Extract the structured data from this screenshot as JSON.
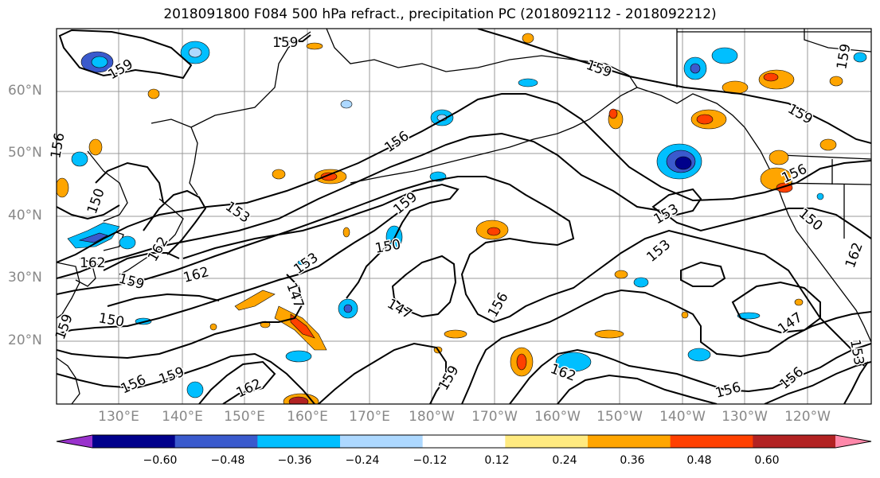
{
  "title": "2018091800 F084 500 hPa refract., precipitation PC (2018092112 - 2018092212)",
  "lat_labels": [
    "60°N",
    "50°N",
    "40°N",
    "30°N",
    "20°N"
  ],
  "lon_labels": [
    "130°E",
    "140°E",
    "150°E",
    "160°E",
    "170°E",
    "180°W",
    "170°W",
    "160°W",
    "150°W",
    "140°W",
    "130°W",
    "120°W"
  ],
  "contour_labels": [
    "159",
    "159",
    "159",
    "159",
    "159",
    "156",
    "153",
    "150",
    "162",
    "162",
    "159",
    "162",
    "153",
    "150",
    "147",
    "150",
    "147",
    "156",
    "159",
    "162",
    "159",
    "156",
    "162",
    "159",
    "153",
    "153",
    "150",
    "156",
    "147",
    "156",
    "156",
    "153",
    "162",
    "156",
    "159"
  ],
  "colorbar": {
    "colors": [
      "#9932CC",
      "#00008B",
      "#3A5ACD",
      "#00BFFF",
      "#ADD8FF",
      "#FFFFFF",
      "#FFEA80",
      "#FFA500",
      "#FF4000",
      "#B22222",
      "#FF88AA"
    ],
    "tick_labels": [
      "−0.60",
      "−0.48",
      "−0.36",
      "−0.24",
      "−0.12",
      "0.12",
      "0.24",
      "0.36",
      "0.48",
      "0.60"
    ]
  }
}
